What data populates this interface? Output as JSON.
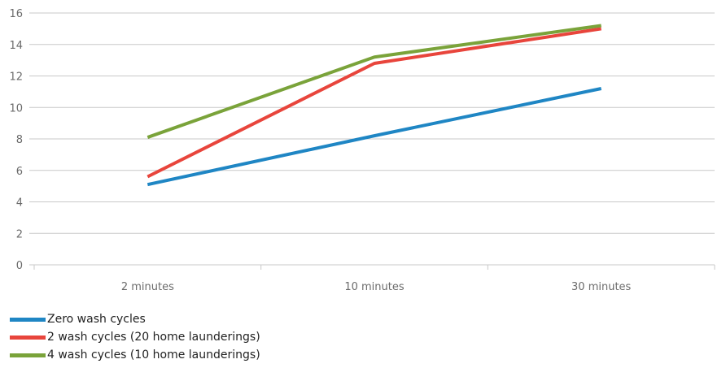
{
  "chart_data": {
    "type": "line",
    "categories": [
      "2 minutes",
      "10 minutes",
      "30 minutes"
    ],
    "ylim": [
      0,
      16
    ],
    "yticks": [
      0,
      2,
      4,
      6,
      8,
      10,
      12,
      14,
      16
    ],
    "grid": true,
    "legend_position": "bottom-left",
    "series": [
      {
        "name": "Zero wash cycles",
        "color": "#1f86c4",
        "values": [
          5.1,
          8.2,
          11.2
        ]
      },
      {
        "name": "2 wash cycles (20 home launderings)",
        "color": "#e8453c",
        "values": [
          5.6,
          12.8,
          15.0
        ]
      },
      {
        "name": "4 wash cycles (10 home launderings)",
        "color": "#7aa33a",
        "values": [
          8.1,
          13.2,
          15.2
        ]
      }
    ]
  }
}
